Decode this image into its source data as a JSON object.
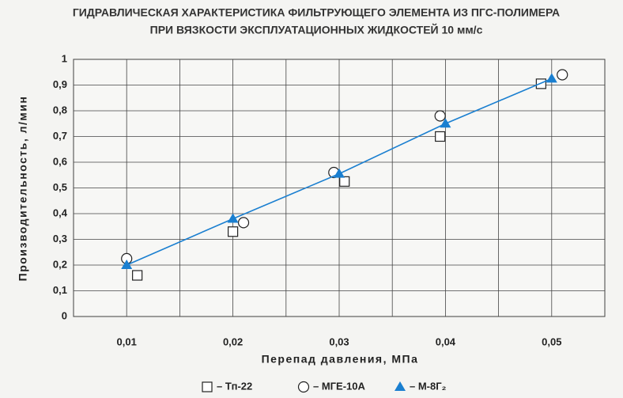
{
  "chart_data": {
    "type": "scatter",
    "title": "ГИДРАВЛИЧЕСКАЯ ХАРАКТЕРИСТИКА ФИЛЬТРУЮЩЕГО ЭЛЕМЕНТА ИЗ ПГС-ПОЛИМЕРА",
    "subtitle": "ПРИ ВЯЗКОСТИ ЭКСПЛУАТАЦИОННЫХ ЖИДКОСТЕЙ 10 мм/с",
    "x_label": "Перепад давления, МПа",
    "y_label": "Производительность, л/мин",
    "xlim": [
      0.005,
      0.055
    ],
    "xticks": [
      {
        "value": 0.01,
        "label": "0,01"
      },
      {
        "value": 0.02,
        "label": "0,02"
      },
      {
        "value": 0.03,
        "label": "0,03"
      },
      {
        "value": 0.04,
        "label": "0,04"
      },
      {
        "value": 0.05,
        "label": "0,05"
      }
    ],
    "xminor": [
      0.005,
      0.015,
      0.025,
      0.035,
      0.045,
      0.055
    ],
    "ylim": [
      0,
      1
    ],
    "yticks": [
      0,
      {
        "value": 0.1,
        "label": "0,1"
      },
      {
        "value": 0.2,
        "label": "0,2"
      },
      {
        "value": 0.3,
        "label": "0,3"
      },
      {
        "value": 0.4,
        "label": "0,4"
      },
      {
        "value": 0.5,
        "label": "0,5"
      },
      {
        "value": 0.6,
        "label": "0,6"
      },
      {
        "value": 0.7,
        "label": "0,7"
      },
      {
        "value": 0.8,
        "label": "0,8"
      },
      {
        "value": 0.9,
        "label": "0,9"
      },
      1
    ],
    "grid": true,
    "legend": "bottom",
    "series": [
      {
        "name": "– Тп-22",
        "marker": "square",
        "color": "#ffffff",
        "line": false,
        "x": [
          0.011,
          0.02,
          0.0305,
          0.0395,
          0.049
        ],
        "values": [
          0.16,
          0.33,
          0.525,
          0.7,
          0.905
        ]
      },
      {
        "name": "– МГЕ-10А",
        "marker": "circle",
        "color": "#ffffff",
        "line": false,
        "x": [
          0.01,
          0.021,
          0.0295,
          0.0395,
          0.051
        ],
        "values": [
          0.225,
          0.365,
          0.56,
          0.78,
          0.94
        ]
      },
      {
        "name": "– М-8Г₂",
        "marker": "triangle",
        "color": "#1a7fd0",
        "line": true,
        "x": [
          0.01,
          0.02,
          0.03,
          0.04,
          0.05
        ],
        "values": [
          0.2,
          0.38,
          0.555,
          0.75,
          0.925
        ]
      }
    ]
  }
}
